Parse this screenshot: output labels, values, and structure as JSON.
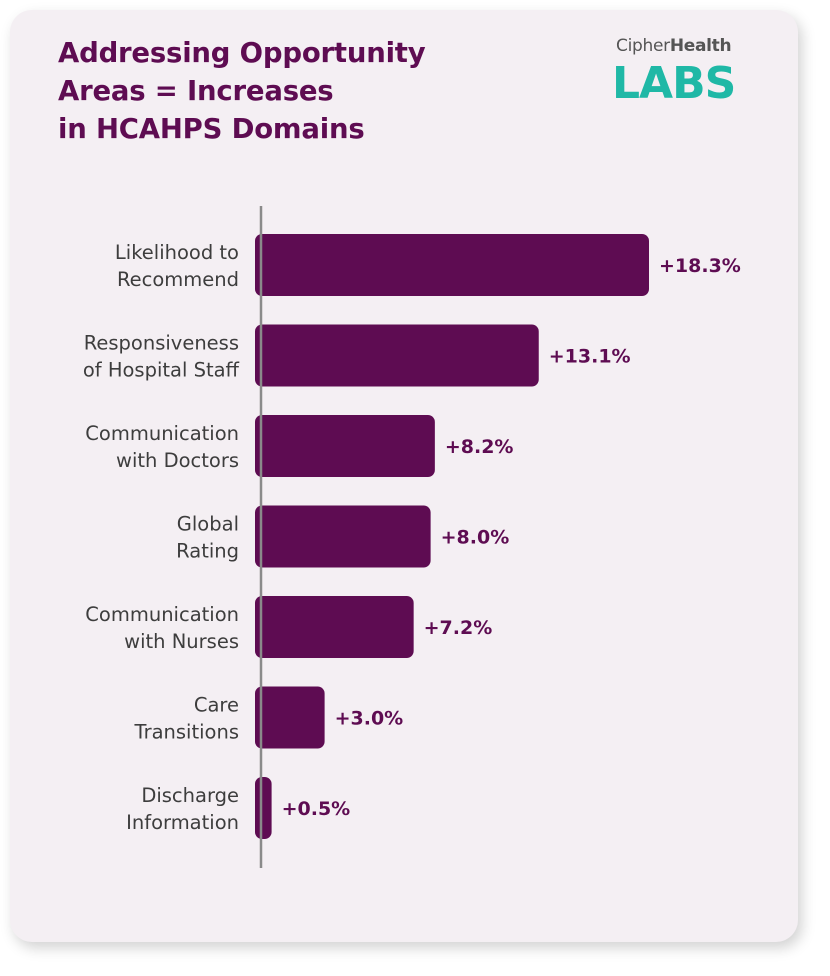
{
  "title_lines": [
    "Addressing Opportunity",
    "Areas = Increases",
    "in HCAHPS Domains"
  ],
  "logo": {
    "brand_light": "Cipher",
    "brand_bold": "Health",
    "labs": "LABS"
  },
  "colors": {
    "bar": "#5e0c52",
    "label": "#3d3d3d",
    "title": "#5e0c52",
    "teal": "#1fb8a6",
    "axis": "#8a8a8a"
  },
  "chart_data": {
    "type": "bar",
    "orientation": "horizontal",
    "title": "Addressing Opportunity Areas = Increases in HCAHPS Domains",
    "categories": [
      [
        "Likelihood to",
        "Recommend"
      ],
      [
        "Responsiveness",
        "of Hospital Staff"
      ],
      [
        "Communication",
        "with Doctors"
      ],
      [
        "Global",
        "Rating"
      ],
      [
        "Communication",
        "with Nurses"
      ],
      [
        "Care",
        "Transitions"
      ],
      [
        "Discharge",
        "Information"
      ]
    ],
    "values": [
      18.3,
      13.1,
      8.2,
      8.0,
      7.2,
      3.0,
      0.5
    ],
    "data_labels": [
      "+18.3%",
      "+13.1%",
      "+8.2%",
      "+8.0%",
      "+7.2%",
      "+3.0%",
      "+0.5%"
    ],
    "xlim": [
      0,
      18.3
    ],
    "grid": false
  }
}
